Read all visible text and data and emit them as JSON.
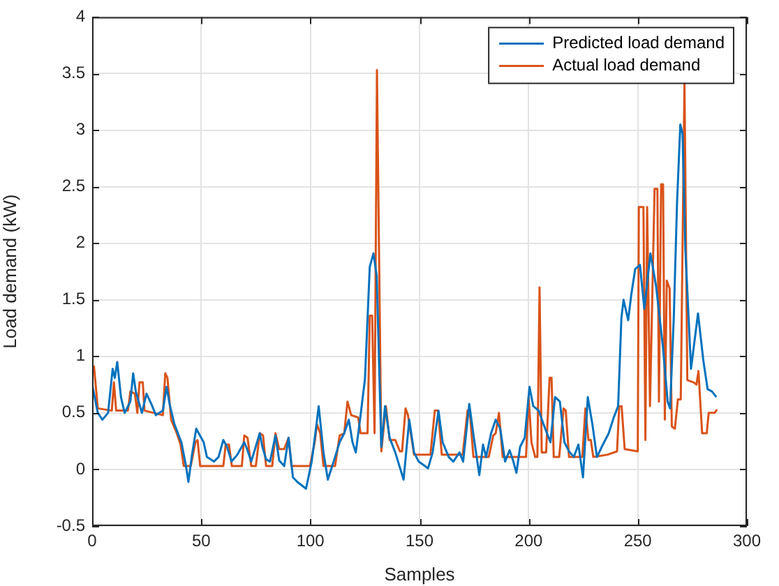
{
  "chart_data": {
    "type": "line",
    "xlabel": "Samples",
    "ylabel": "Load demand (kW)",
    "xlim": [
      0,
      300
    ],
    "xticks": [
      0,
      50,
      100,
      150,
      200,
      250,
      300
    ],
    "ylim": [
      -0.5,
      4
    ],
    "yticks": [
      -0.5,
      0,
      0.5,
      1,
      1.5,
      2,
      2.5,
      3,
      3.5,
      4
    ],
    "grid": true,
    "legend": "top right",
    "marker": "none",
    "line_style": "solid",
    "series": [
      {
        "name": "Predicted load demand",
        "color": "#0072bd",
        "x": [
          0,
          2.6,
          4.7,
          7.3,
          9.4,
          10.4,
          11.5,
          13.2,
          14.9,
          17.5,
          18.8,
          20,
          21.3,
          22.8,
          24.9,
          27.1,
          29.2,
          32.4,
          34.1,
          35.6,
          37.7,
          40.9,
          43,
          44.1,
          45.6,
          47.7,
          49.4,
          51.1,
          52.6,
          55.8,
          57.9,
          60.1,
          61.8,
          63.9,
          66.5,
          69.7,
          71,
          72.9,
          76.8,
          78,
          79.7,
          81.5,
          84,
          85.7,
          88,
          90,
          92,
          94,
          98,
          100.6,
          102.8,
          103.8,
          106,
          108,
          111.3,
          113.4,
          115.5,
          117.6,
          119.3,
          120.8,
          123,
          125,
          127.2,
          128.9,
          130.4,
          132.5,
          134.2,
          136.3,
          138.9,
          142.7,
          145.3,
          147.5,
          149.6,
          153.9,
          156,
          158.7,
          160.6,
          163.4,
          165.5,
          168.3,
          170,
          172.8,
          174.9,
          177.4,
          179.1,
          180.5,
          182.8,
          184.9,
          187,
          189.2,
          191.3,
          193,
          194.4,
          196.1,
          198.2,
          200.4,
          202.1,
          204.6,
          206.8,
          210,
          212.1,
          214.3,
          216.4,
          218.5,
          220.7,
          222.8,
          224.9,
          227.1,
          229.2,
          231.3,
          233.5,
          236.7,
          239,
          241,
          242.5,
          243.5,
          245.6,
          247,
          248.8,
          251,
          253,
          255.8,
          258.4,
          261.5,
          263.7,
          264.8,
          266.5,
          268,
          269.5,
          270.5,
          271.8,
          274.4,
          277.6,
          280,
          282,
          284,
          286
        ],
        "values": [
          0.75,
          0.5,
          0.44,
          0.5,
          0.89,
          0.81,
          0.95,
          0.64,
          0.5,
          0.6,
          0.85,
          0.69,
          0.6,
          0.5,
          0.67,
          0.58,
          0.48,
          0.52,
          0.73,
          0.57,
          0.4,
          0.24,
          0.03,
          -0.11,
          0.11,
          0.36,
          0.3,
          0.24,
          0.11,
          0.07,
          0.11,
          0.26,
          0.2,
          0.07,
          0.13,
          0.24,
          0.18,
          0.07,
          0.32,
          0.2,
          0.09,
          0.07,
          0.3,
          0.08,
          0.03,
          0.28,
          -0.07,
          -0.11,
          -0.17,
          0.07,
          0.4,
          0.56,
          0.15,
          -0.09,
          0.11,
          0.24,
          0.32,
          0.44,
          0.24,
          0.15,
          0.48,
          0.8,
          1.79,
          1.91,
          1.71,
          0.2,
          0.56,
          0.28,
          0.15,
          -0.09,
          0.44,
          0.15,
          0.07,
          0.01,
          0.15,
          0.52,
          0.24,
          0.11,
          0.07,
          0.15,
          0.07,
          0.58,
          0.28,
          -0.05,
          0.22,
          0.11,
          0.32,
          0.44,
          0.36,
          0.07,
          0.17,
          0.07,
          -0.03,
          0.2,
          0.28,
          0.73,
          0.56,
          0.52,
          0.4,
          0.24,
          0.64,
          0.6,
          0.24,
          0.16,
          0.11,
          0.22,
          -0.07,
          0.64,
          0.4,
          0.11,
          0.2,
          0.32,
          0.46,
          0.56,
          1.34,
          1.5,
          1.32,
          1.54,
          1.77,
          1.81,
          1.42,
          1.91,
          1.62,
          1.09,
          0.6,
          0.54,
          1.34,
          2.36,
          3.05,
          2.97,
          1.95,
          0.89,
          1.38,
          0.97,
          0.71,
          0.69,
          0.64
        ]
      },
      {
        "name": "Actual load demand",
        "color": "#d95319",
        "x": [
          0,
          0.85,
          2.6,
          9,
          10,
          11,
          16.4,
          17.5,
          19.6,
          20.7,
          21.7,
          23.2,
          24,
          32.4,
          33.5,
          34.5,
          36.2,
          38.8,
          40.5,
          42,
          45.2,
          47.3,
          48.3,
          49.5,
          60.1,
          61.2,
          62.7,
          64,
          68.6,
          69.7,
          71.2,
          72.9,
          75,
          76.8,
          78.3,
          79.7,
          82.5,
          84,
          85.7,
          88,
          90,
          91.3,
          99.8,
          102,
          103,
          104.5,
          106,
          111.3,
          113.4,
          115.5,
          117,
          118.7,
          121.9,
          123,
          126.2,
          127.2,
          128.3,
          129.4,
          130.5,
          132.5,
          134.6,
          136.3,
          138.9,
          141,
          142,
          143.6,
          144.7,
          147.5,
          155,
          157,
          158.5,
          160.2,
          169.8,
          172,
          173,
          174.7,
          181.7,
          183.8,
          184.9,
          186.4,
          188.1,
          198.8,
          200,
          201.3,
          203,
          204,
          205,
          206,
          208,
          209.6,
          210.5,
          211.5,
          214,
          216,
          217,
          218.5,
          224.6,
          226,
          227.4,
          228.5,
          229.6,
          236,
          240.5,
          241.5,
          242.6,
          244,
          250,
          250.5,
          252.6,
          253.5,
          254.3,
          255.6,
          257.7,
          259,
          259.7,
          260.7,
          261.6,
          262.4,
          263.3,
          264.6,
          265.6,
          267,
          268.4,
          269.7,
          271.4,
          272.7,
          275.6,
          276.9,
          277.8,
          279.5,
          281.6,
          282.5,
          285.2,
          286.3
        ],
        "values": [
          0.9,
          0.91,
          0.54,
          0.52,
          0.77,
          0.52,
          0.52,
          0.69,
          0.67,
          0.5,
          0.77,
          0.77,
          0.52,
          0.48,
          0.85,
          0.81,
          0.44,
          0.32,
          0.22,
          0.03,
          0.03,
          0.24,
          0.26,
          0.03,
          0.03,
          0.22,
          0.22,
          0.03,
          0.03,
          0.3,
          0.28,
          0.03,
          0.03,
          0.32,
          0.3,
          0.03,
          0.03,
          0.32,
          0.18,
          0.18,
          0.28,
          0.03,
          0.03,
          0.24,
          0.4,
          0.32,
          0.03,
          0.03,
          0.3,
          0.32,
          0.6,
          0.48,
          0.46,
          0.32,
          0.32,
          1.36,
          1.36,
          0.32,
          3.53,
          0.16,
          0.56,
          0.26,
          0.26,
          0.16,
          0.16,
          0.54,
          0.48,
          0.13,
          0.13,
          0.52,
          0.52,
          0.13,
          0.13,
          0.52,
          0.52,
          0.11,
          0.11,
          0.3,
          0.32,
          0.5,
          0.11,
          0.11,
          0.64,
          0.24,
          0.11,
          0.11,
          1.61,
          0.15,
          0.15,
          0.81,
          0.81,
          0.11,
          0.11,
          0.54,
          0.52,
          0.11,
          0.11,
          0.54,
          0.26,
          0.26,
          0.11,
          0.13,
          0.16,
          0.56,
          0.56,
          0.18,
          0.16,
          2.32,
          2.32,
          0.26,
          2.32,
          0.56,
          2.48,
          2.48,
          0.6,
          2.52,
          2.52,
          0.44,
          1.67,
          1.6,
          0.38,
          0.36,
          0.62,
          0.62,
          3.42,
          0.79,
          0.77,
          0.75,
          0.87,
          0.32,
          0.32,
          0.5,
          0.5,
          0.53
        ]
      }
    ]
  }
}
